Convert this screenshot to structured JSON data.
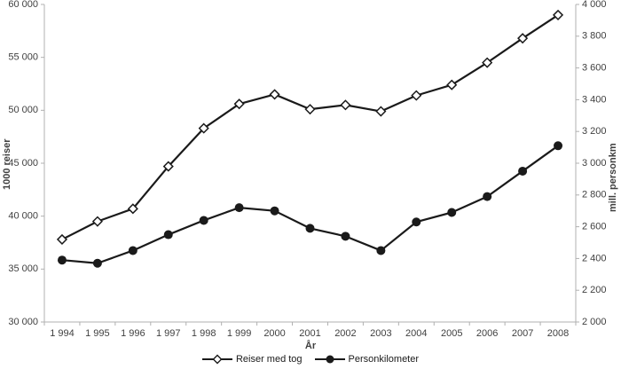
{
  "chart_data": {
    "type": "line",
    "title": "",
    "xlabel": "År",
    "categories": [
      "1 994",
      "1 995",
      "1 996",
      "1 997",
      "1 998",
      "1 999",
      "2000",
      "2001",
      "2002",
      "2003",
      "2004",
      "2005",
      "2006",
      "2007",
      "2008"
    ],
    "left_axis": {
      "label": "1000 reiser",
      "min": 30000,
      "max": 60000,
      "tick_step": 5000,
      "tick_labels": [
        "30 000",
        "35 000",
        "40 000",
        "45 000",
        "50 000",
        "55 000",
        "60 000"
      ],
      "tick_values": [
        30000,
        35000,
        40000,
        45000,
        50000,
        55000,
        60000
      ]
    },
    "right_axis": {
      "label": "mill. personkm",
      "min": 2000,
      "max": 4000,
      "tick_step": 200,
      "tick_labels": [
        "2 000",
        "2 200",
        "2 400",
        "2 600",
        "2 800",
        "3 000",
        "3 200",
        "3 400",
        "3 600",
        "3 800",
        "4 000"
      ],
      "tick_values": [
        2000,
        2200,
        2400,
        2600,
        2800,
        3000,
        3200,
        3400,
        3600,
        3800,
        4000
      ]
    },
    "series": [
      {
        "name": "Reiser med tog",
        "axis": "left",
        "marker": "diamond-open",
        "values": [
          37800,
          39500,
          40700,
          44700,
          48300,
          50600,
          51500,
          50100,
          50500,
          49900,
          51400,
          52400,
          54500,
          56800,
          59000
        ]
      },
      {
        "name": "Personkilometer",
        "axis": "right",
        "marker": "circle-filled",
        "values": [
          2390,
          2370,
          2450,
          2550,
          2640,
          2720,
          2700,
          2590,
          2540,
          2450,
          2630,
          2690,
          2790,
          2950,
          3110
        ]
      }
    ],
    "legend_position": "bottom",
    "grid": false
  },
  "colors": {
    "background": "#ffffff",
    "axis_line": "#b0b0b0",
    "tick_label": "#3f3f3f",
    "series_line": "#1a1a1a",
    "marker_fill_open": "#ffffff"
  }
}
